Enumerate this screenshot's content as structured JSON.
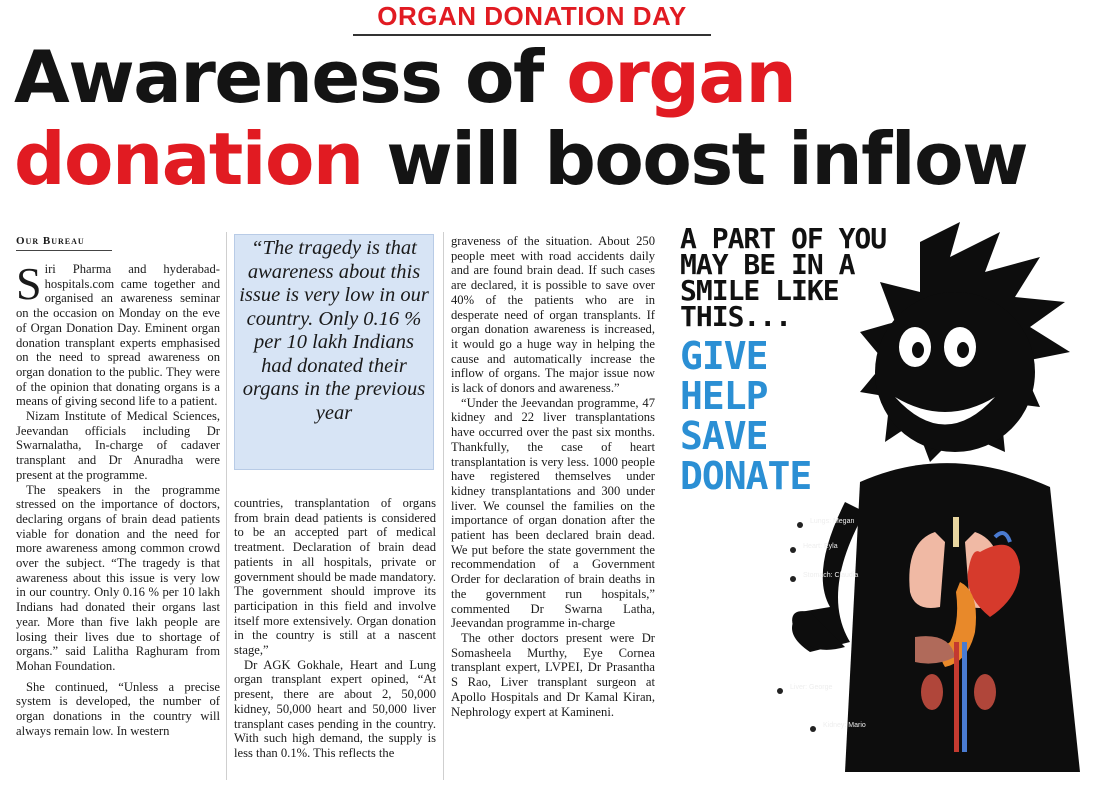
{
  "section_label": "ORGAN DONATION DAY",
  "headline": {
    "part1": "Awareness of ",
    "part2_red": "organ",
    "part3_red": "donation",
    "part4": " will boost inflow"
  },
  "byline": "Our Bureau",
  "column1": {
    "dropcap": "S",
    "paragraphs": [
      "iri Pharma and hyderabad-hospitals.com came together and organised an awareness seminar on the occasion on Monday on the eve of Organ Donation Day. Eminent organ donation transplant experts emphasised on the need to spread awareness on organ donation to the public. They were of the opinion that donating organs is a means of giving second life to a patient.",
      "Nizam Institute of Medical Sciences, Jeevandan officials including Dr Swarnalatha, In-charge of cadaver transplant and Dr Anuradha were present at the programme.",
      "The speakers in the programme stressed on the importance of doctors, declaring organs of brain dead patients viable for donation and the need for more awareness among common crowd over the subject. “The tragedy is that awareness about this issue is very low in our country. Only 0.16 % per 10 lakh Indians had donated their organs last year. More than five lakh people are losing their lives due to shortage of organs.” said Lalitha Raghuram from Mohan Foundation.",
      "She continued, “Unless a precise system is developed, the number of organ donations in the country will always remain low. In western"
    ]
  },
  "pull_quote": "“The tragedy is that awareness about this issue is very low in our country. Only 0.16 % per 10 lakh Indians had donated their organs in the previous year",
  "column2": {
    "paragraphs": [
      "countries, transplantation of organs from brain dead patients is considered to be an accepted part of medical treatment. Declaration of brain dead patients in all hospitals, private or government should be made mandatory. The government should improve its participation in this field and involve itself more extensively. Organ donation in the country is still at a nascent stage,”",
      "Dr AGK Gokhale, Heart and Lung organ transplant expert opined, “At present, there are about 2, 50,000 kidney, 50,000 heart and 50,000 liver transplant cases pending in the country. With such high demand, the supply is less than 0.1%. This reflects the"
    ]
  },
  "column3": {
    "paragraphs": [
      "graveness of the situation. About 250 people meet with road accidents daily and are found brain dead. If such cases are declared, it is possible to save over 40% of the patients who are in desperate need of organ transplants. If organ donation awareness is increased, it would go a huge way in helping the cause and automatically increase the inflow of organs. The major issue now is lack of donors and awareness.”",
      "“Under the Jeevandan programme, 47 kidney and 22 liver transplantations have occurred over the past six months. Thankfully, the case of heart transplantation is very less. 1000 people have registered themselves under kidney transplantations and 300 under liver. We counsel the families on the importance of organ donation after the patient has been declared brain dead. We put before the state government the recommendation of a Government Order for declaration of brain deaths in the government run hospitals,” commented Dr Swarna Latha, Jeevandan programme in-charge",
      "The other doctors present were Dr Somasheela Murthy, Eye Cornea transplant expert, LVPEI, Dr Prasantha S Rao, Liver transplant surgeon at Apollo Hospitals and Dr Kamal Kiran, Nephrology expert at Kamineni."
    ]
  },
  "poster": {
    "small_lines": [
      "A PART OF YOU",
      "MAY BE IN A",
      "SMILE LIKE",
      "THIS..."
    ],
    "big_lines": [
      "GIVE",
      "HELP",
      "SAVE",
      "DONATE"
    ],
    "organ_labels": [
      "Lungs: Megan",
      "Heart: Eyla",
      "Stomach: Claudia",
      "Liver: George",
      "Kidney: Mario"
    ],
    "colors": {
      "accent_blue": "#2b8fd4",
      "figure": "#0d0d0d",
      "heart": "#d63a2c",
      "lungs": "#f0b9a4"
    }
  }
}
